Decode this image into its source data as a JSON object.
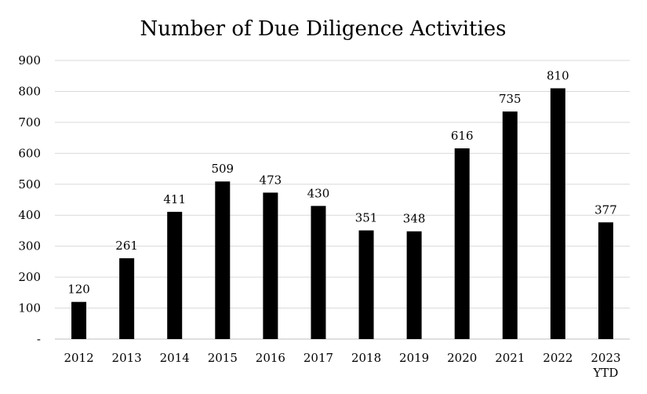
{
  "chart_data": {
    "type": "bar",
    "title": "Number of Due Diligence Activities",
    "xlabel": "",
    "ylabel": "",
    "categories": [
      [
        "2012"
      ],
      [
        "2013"
      ],
      [
        "2014"
      ],
      [
        "2015"
      ],
      [
        "2016"
      ],
      [
        "2017"
      ],
      [
        "2018"
      ],
      [
        "2019"
      ],
      [
        "2020"
      ],
      [
        "2021"
      ],
      [
        "2022"
      ],
      [
        "2023",
        "YTD"
      ]
    ],
    "values": [
      120,
      261,
      411,
      509,
      473,
      430,
      351,
      348,
      616,
      735,
      810,
      377
    ],
    "data_labels": [
      "120",
      "261",
      "411",
      "509",
      "473",
      "430",
      "351",
      "348",
      "616",
      "735",
      "810",
      "377"
    ],
    "ylim": [
      0,
      900
    ],
    "yticks": [
      0,
      100,
      200,
      300,
      400,
      500,
      600,
      700,
      800,
      900
    ],
    "ytick_labels": [
      "-",
      "100",
      "200",
      "300",
      "400",
      "500",
      "600",
      "700",
      "800",
      "900"
    ],
    "grid": true,
    "legend": "none",
    "colors": {
      "bar": "#000000",
      "grid": "#d9d9d9",
      "axis": "#bfbfbf",
      "text": "#000000"
    }
  }
}
